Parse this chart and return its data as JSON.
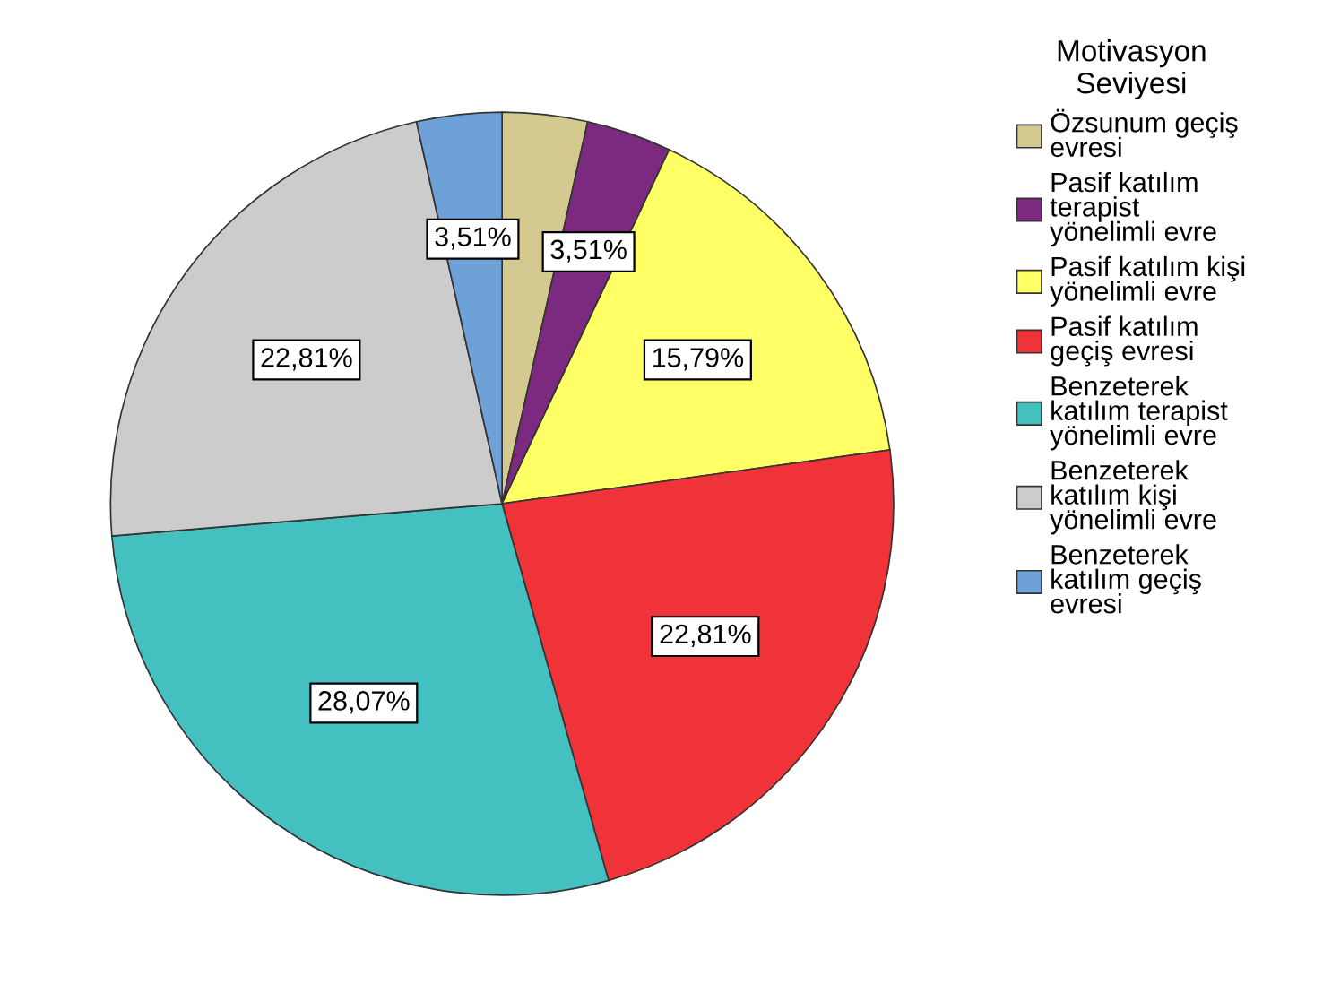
{
  "chart_data": {
    "type": "pie",
    "legend_title": "Motivasyon\nSeviyesi",
    "categories": [
      "Özsunum geçiş\nevresi",
      "Pasif katılım\nterapist\nyönelimli evre",
      "Pasif katılım kişi\nyönelimli evre",
      "Pasif katılım\ngeçiş evresi",
      "Benzeterek\nkatılım terapist\nyönelimli evre",
      "Benzeterek\nkatılım kişi\nyönelimli evre",
      "Benzeterek\nkatılım geçiş\nevresi"
    ],
    "values": [
      3.51,
      3.51,
      15.79,
      22.81,
      28.07,
      22.81,
      3.51
    ],
    "value_labels": [
      null,
      "3,51%",
      "15,79%",
      "22,81%",
      "28,07%",
      "22,81%",
      "3,51%"
    ],
    "colors": [
      "#d4c98e",
      "#7b2a80",
      "#ffff66",
      "#ef3339",
      "#45c0c0",
      "#cccccc",
      "#6fa1d9"
    ],
    "legend": "right"
  }
}
